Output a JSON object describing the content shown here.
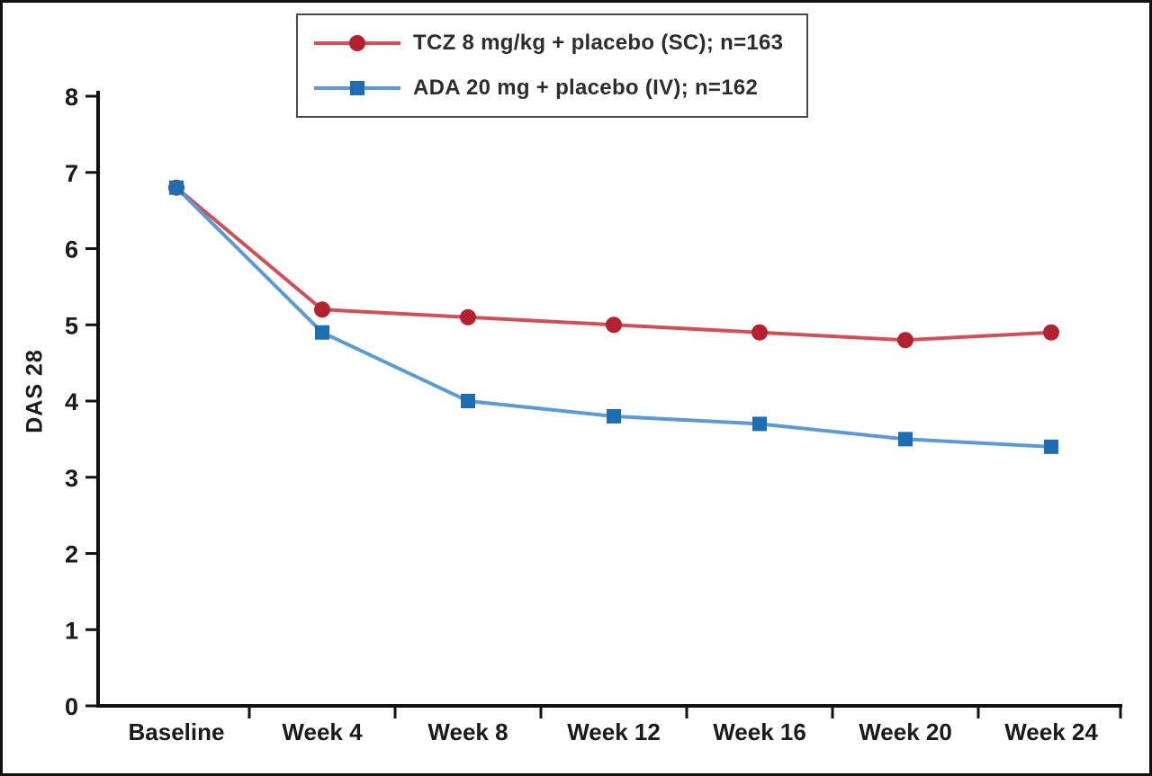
{
  "chart_data": {
    "type": "line",
    "title": "",
    "ylabel": "DAS 28",
    "xlabel": "",
    "ylim": [
      0,
      8
    ],
    "yticks": [
      0,
      1,
      2,
      3,
      4,
      5,
      6,
      7,
      8
    ],
    "grid": false,
    "legend_position": "top",
    "categories": [
      "Baseline",
      "Week 4",
      "Week 8",
      "Week 12",
      "Week 16",
      "Week 20",
      "Week 24"
    ],
    "series": [
      {
        "name": "TCZ 8 mg/kg + placebo (SC); n=163",
        "marker": "circle",
        "line_color": "#cf5058",
        "marker_color": "#b5202e",
        "values": [
          6.8,
          5.2,
          5.1,
          5.0,
          4.9,
          4.8,
          4.9
        ]
      },
      {
        "name": "ADA 20 mg + placebo (IV); n=162",
        "marker": "square",
        "line_color": "#5b9bd1",
        "marker_color": "#1e6cb2",
        "values": [
          6.8,
          4.9,
          4.0,
          3.8,
          3.7,
          3.5,
          3.4
        ]
      }
    ],
    "axis_color": "#111111"
  }
}
